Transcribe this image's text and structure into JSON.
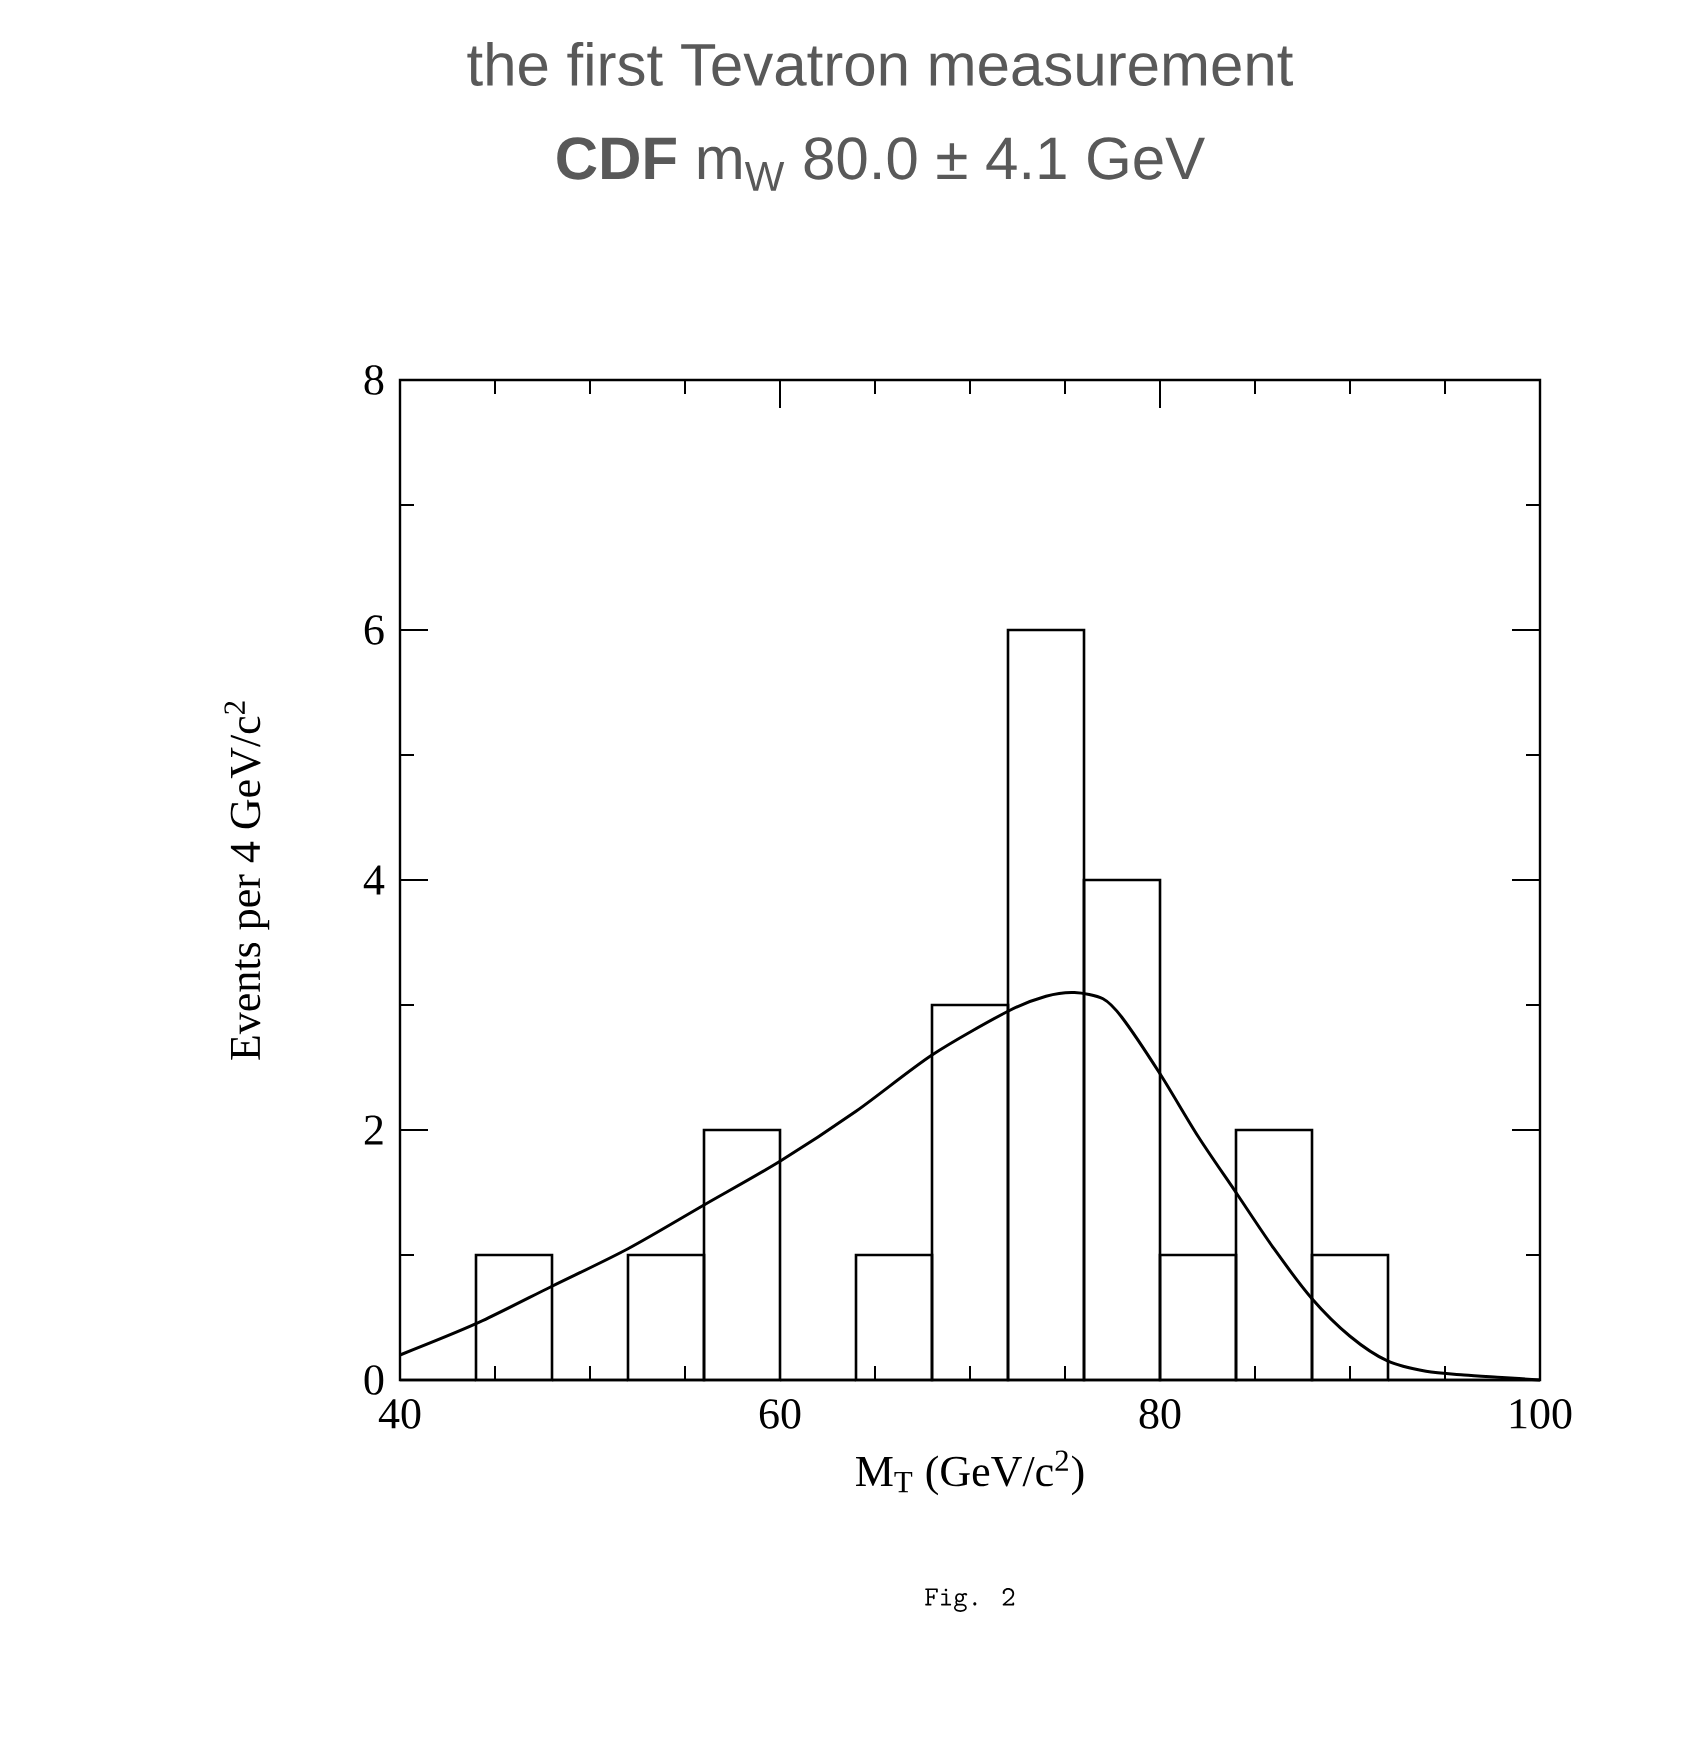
{
  "chart_data": {
    "type": "histogram",
    "title": "the first Tevatron measurement",
    "subtitle": "**CDF** m$_{W}$ 80.0 ± 4.1 GeV",
    "xlabel": "M$_{T}$  (GeV/c$^{2}$)",
    "ylabel": "Events per 4 GeV/c$^{2}$",
    "annotations": [
      "Fig. 2"
    ],
    "bins": [
      40,
      44,
      48,
      52,
      56,
      60,
      64,
      68,
      72,
      76,
      80,
      84,
      88,
      92,
      96,
      100
    ],
    "values": [
      0,
      1,
      0,
      1,
      2,
      0,
      1,
      3,
      6,
      4,
      1,
      2,
      1,
      0,
      0
    ],
    "color": "#000000",
    "series": [
      {
        "type": "line",
        "color": "#000000",
        "x": [
          40,
          44,
          48,
          52,
          56,
          60,
          64,
          68,
          72,
          74,
          75.5,
          77,
          78,
          80,
          82,
          84,
          86,
          88,
          90,
          92,
          94,
          96,
          98,
          100
        ],
        "values": [
          0.2,
          0.45,
          0.75,
          1.05,
          1.4,
          1.75,
          2.15,
          2.6,
          2.95,
          3.07,
          3.1,
          3.05,
          2.9,
          2.45,
          1.95,
          1.5,
          1.05,
          0.65,
          0.35,
          0.15,
          0.07,
          0.04,
          0.02,
          0.0
        ]
      }
    ],
    "xlim": [
      40,
      100
    ],
    "xticks": [
      40,
      60,
      80,
      100
    ],
    "ylim": [
      0,
      8
    ],
    "yticks": [
      0,
      2,
      4,
      6,
      8
    ]
  }
}
